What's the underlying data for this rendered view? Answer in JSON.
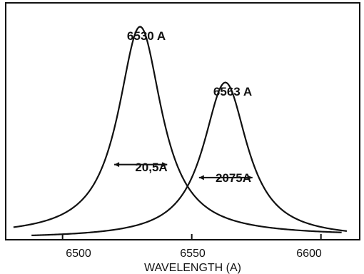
{
  "chart_data": {
    "type": "line",
    "xlabel": "WAVELENGTH (A)",
    "ylabel": "",
    "xlim": [
      6478,
      6615
    ],
    "ylim": [
      0,
      1.0
    ],
    "x_ticks": [
      6500,
      6550,
      6600
    ],
    "x_tick_labels": [
      "6500",
      "6550",
      "6600"
    ],
    "grid": false,
    "series": [
      {
        "peak_x": 6530,
        "peak_y": 0.91,
        "hwhm": 10.25,
        "min_x": 6481,
        "max_x": 6608,
        "baseline": 0.01
      },
      {
        "peak_x": 6563,
        "peak_y": 0.67,
        "hwhm": 10.375,
        "min_x": 6488,
        "max_x": 6610,
        "baseline": 0.0
      }
    ],
    "peak_labels": [
      "6530 A",
      "6563 A"
    ],
    "width_annotations": [
      {
        "label": "20,5A",
        "x1": 6520,
        "x2": 6540.5,
        "y": 0.317
      },
      {
        "label": "2075A",
        "x1": 6552.8,
        "x2": 6573.5,
        "y": 0.261
      }
    ]
  }
}
